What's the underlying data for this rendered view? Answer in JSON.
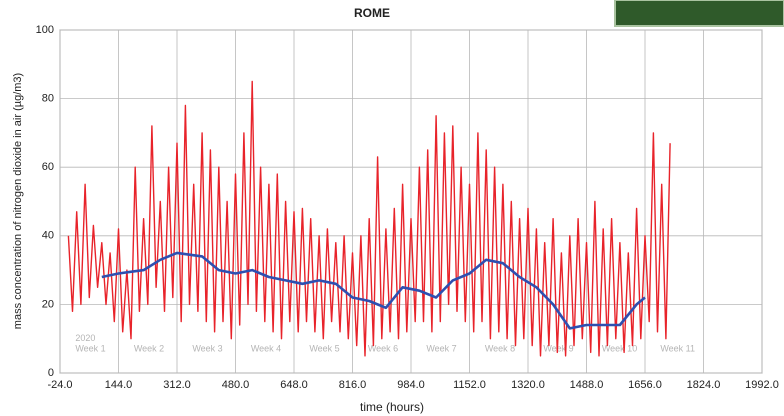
{
  "chart_data": {
    "type": "line",
    "title": "ROME",
    "xlabel": "time (hours)",
    "ylabel": "mass concentration of nitrogen dioxide in air (µg/m3)",
    "xlim": [
      -24,
      1992
    ],
    "ylim": [
      0,
      100
    ],
    "xticks": [
      {
        "value": -24,
        "label": "-24.0"
      },
      {
        "value": 144,
        "label": "144.0"
      },
      {
        "value": 312,
        "label": "312.0"
      },
      {
        "value": 480,
        "label": "480.0"
      },
      {
        "value": 648,
        "label": "648.0"
      },
      {
        "value": 816,
        "label": "816.0"
      },
      {
        "value": 984,
        "label": "984.0"
      },
      {
        "value": 1152,
        "label": "1152.0"
      },
      {
        "value": 1320,
        "label": "1320.0"
      },
      {
        "value": 1488,
        "label": "1488.0"
      },
      {
        "value": 1656,
        "label": "1656.0"
      },
      {
        "value": 1824,
        "label": "1824.0"
      },
      {
        "value": 1992,
        "label": "1992.0"
      }
    ],
    "yticks": [
      0,
      20,
      40,
      60,
      80,
      100
    ],
    "grid": true,
    "series": [
      {
        "color": "#e8232a",
        "x": [
          0,
          12,
          24,
          36,
          48,
          60,
          72,
          84,
          96,
          108,
          120,
          132,
          144,
          156,
          168,
          180,
          192,
          204,
          216,
          228,
          240,
          252,
          264,
          276,
          288,
          300,
          312,
          324,
          336,
          348,
          360,
          372,
          384,
          396,
          408,
          420,
          432,
          444,
          456,
          468,
          480,
          492,
          504,
          516,
          528,
          540,
          552,
          564,
          576,
          588,
          600,
          612,
          624,
          636,
          648,
          660,
          672,
          684,
          696,
          708,
          720,
          732,
          744,
          756,
          768,
          780,
          792,
          804,
          816,
          828,
          840,
          852,
          864,
          876,
          888,
          900,
          912,
          924,
          936,
          948,
          960,
          972,
          984,
          996,
          1008,
          1020,
          1032,
          1044,
          1056,
          1068,
          1080,
          1092,
          1104,
          1116,
          1128,
          1140,
          1152,
          1164,
          1176,
          1188,
          1200,
          1212,
          1224,
          1236,
          1248,
          1260,
          1272,
          1284,
          1296,
          1308,
          1320,
          1332,
          1344,
          1356,
          1368,
          1380,
          1392,
          1404,
          1416,
          1428,
          1440,
          1452,
          1464,
          1476,
          1488,
          1500,
          1512,
          1524,
          1536,
          1548,
          1560,
          1572,
          1584,
          1596,
          1608,
          1620,
          1632,
          1644,
          1656,
          1668,
          1680,
          1692,
          1704,
          1716,
          1728
        ],
        "values": [
          40,
          18,
          47,
          20,
          55,
          22,
          43,
          25,
          38,
          20,
          35,
          15,
          42,
          12,
          30,
          10,
          60,
          18,
          45,
          20,
          72,
          25,
          50,
          18,
          60,
          22,
          67,
          15,
          78,
          20,
          55,
          18,
          70,
          15,
          65,
          12,
          60,
          15,
          50,
          10,
          58,
          14,
          70,
          20,
          85,
          18,
          60,
          15,
          55,
          12,
          58,
          10,
          50,
          15,
          47,
          12,
          48,
          15,
          45,
          12,
          40,
          10,
          42,
          15,
          38,
          12,
          40,
          10,
          35,
          8,
          40,
          5,
          45,
          8,
          63,
          10,
          42,
          12,
          48,
          10,
          55,
          12,
          45,
          15,
          60,
          15,
          65,
          12,
          75,
          15,
          70,
          20,
          72,
          18,
          60,
          15,
          55,
          12,
          70,
          15,
          65,
          10,
          60,
          12,
          55,
          10,
          50,
          8,
          45,
          10,
          48,
          8,
          42,
          5,
          38,
          8,
          45,
          6,
          35,
          5,
          40,
          8,
          45,
          10,
          38,
          6,
          50,
          5,
          42,
          8,
          45,
          10,
          38,
          6,
          35,
          8,
          48,
          10,
          40,
          15,
          70,
          12,
          55,
          10,
          67
        ]
      },
      {
        "color": "#2e4fb0",
        "x": [
          96,
          144,
          216,
          264,
          312,
          384,
          432,
          480,
          528,
          576,
          624,
          672,
          720,
          768,
          816,
          864,
          912,
          960,
          1008,
          1056,
          1104,
          1152,
          1200,
          1248,
          1296,
          1344,
          1392,
          1440,
          1488,
          1536,
          1584,
          1632,
          1656
        ],
        "values": [
          28,
          29,
          30,
          33,
          35,
          34,
          30,
          29,
          30,
          28,
          27,
          26,
          27,
          26,
          22,
          21,
          19,
          25,
          24,
          22,
          27,
          29,
          33,
          32,
          28,
          25,
          20,
          13,
          14,
          14,
          14,
          20,
          22
        ]
      }
    ],
    "annotations": [
      {
        "text": "2020",
        "x": 0,
        "y": 10
      },
      {
        "text": "Week 1",
        "x": 0,
        "y": 7
      },
      {
        "text": "Week 2",
        "x": 168,
        "y": 7
      },
      {
        "text": "Week 3",
        "x": 336,
        "y": 7
      },
      {
        "text": "Week 4",
        "x": 504,
        "y": 7
      },
      {
        "text": "Week 5",
        "x": 672,
        "y": 7
      },
      {
        "text": "Week 6",
        "x": 840,
        "y": 7
      },
      {
        "text": "Week 7",
        "x": 1008,
        "y": 7
      },
      {
        "text": "Week 8",
        "x": 1176,
        "y": 7
      },
      {
        "text": "Week 9",
        "x": 1344,
        "y": 7
      },
      {
        "text": "Week 10",
        "x": 1512,
        "y": 7
      },
      {
        "text": "Week 11",
        "x": 1680,
        "y": 7
      }
    ]
  }
}
